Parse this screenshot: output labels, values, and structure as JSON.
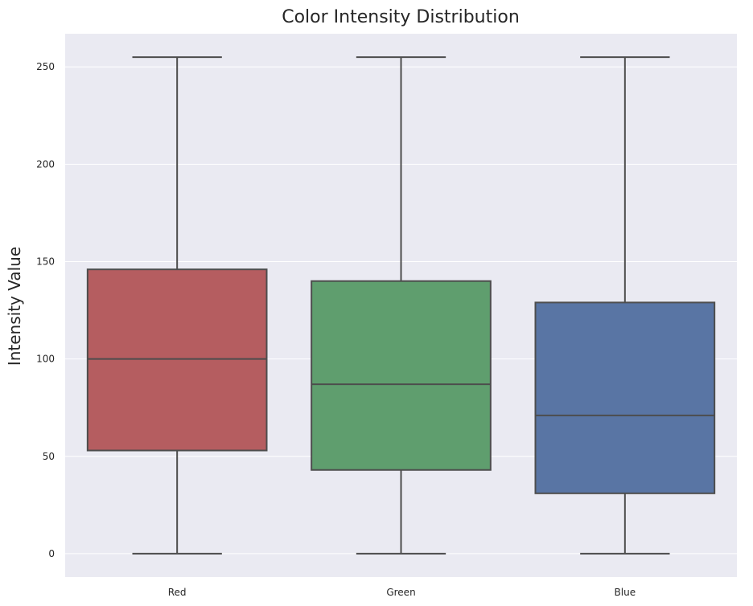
{
  "chart_data": {
    "type": "box",
    "title": "Color Intensity Distribution",
    "xlabel": "",
    "ylabel": "Intensity Value",
    "categories": [
      "Red",
      "Green",
      "Blue"
    ],
    "boxes": [
      {
        "category": "Red",
        "min": 0,
        "q1": 53,
        "median": 100,
        "q3": 146,
        "max": 255,
        "color": "#b55d60"
      },
      {
        "category": "Green",
        "min": 0,
        "q1": 43,
        "median": 87,
        "q3": 140,
        "max": 255,
        "color": "#5f9e6e"
      },
      {
        "category": "Blue",
        "min": 0,
        "q1": 31,
        "median": 71,
        "q3": 129,
        "max": 255,
        "color": "#5975a4"
      }
    ],
    "yticks": [
      0,
      50,
      100,
      150,
      200,
      250
    ],
    "ylim": [
      -12,
      267
    ],
    "grid": true,
    "background": "#eaeaf2",
    "line_color": "#4d4d4d"
  }
}
